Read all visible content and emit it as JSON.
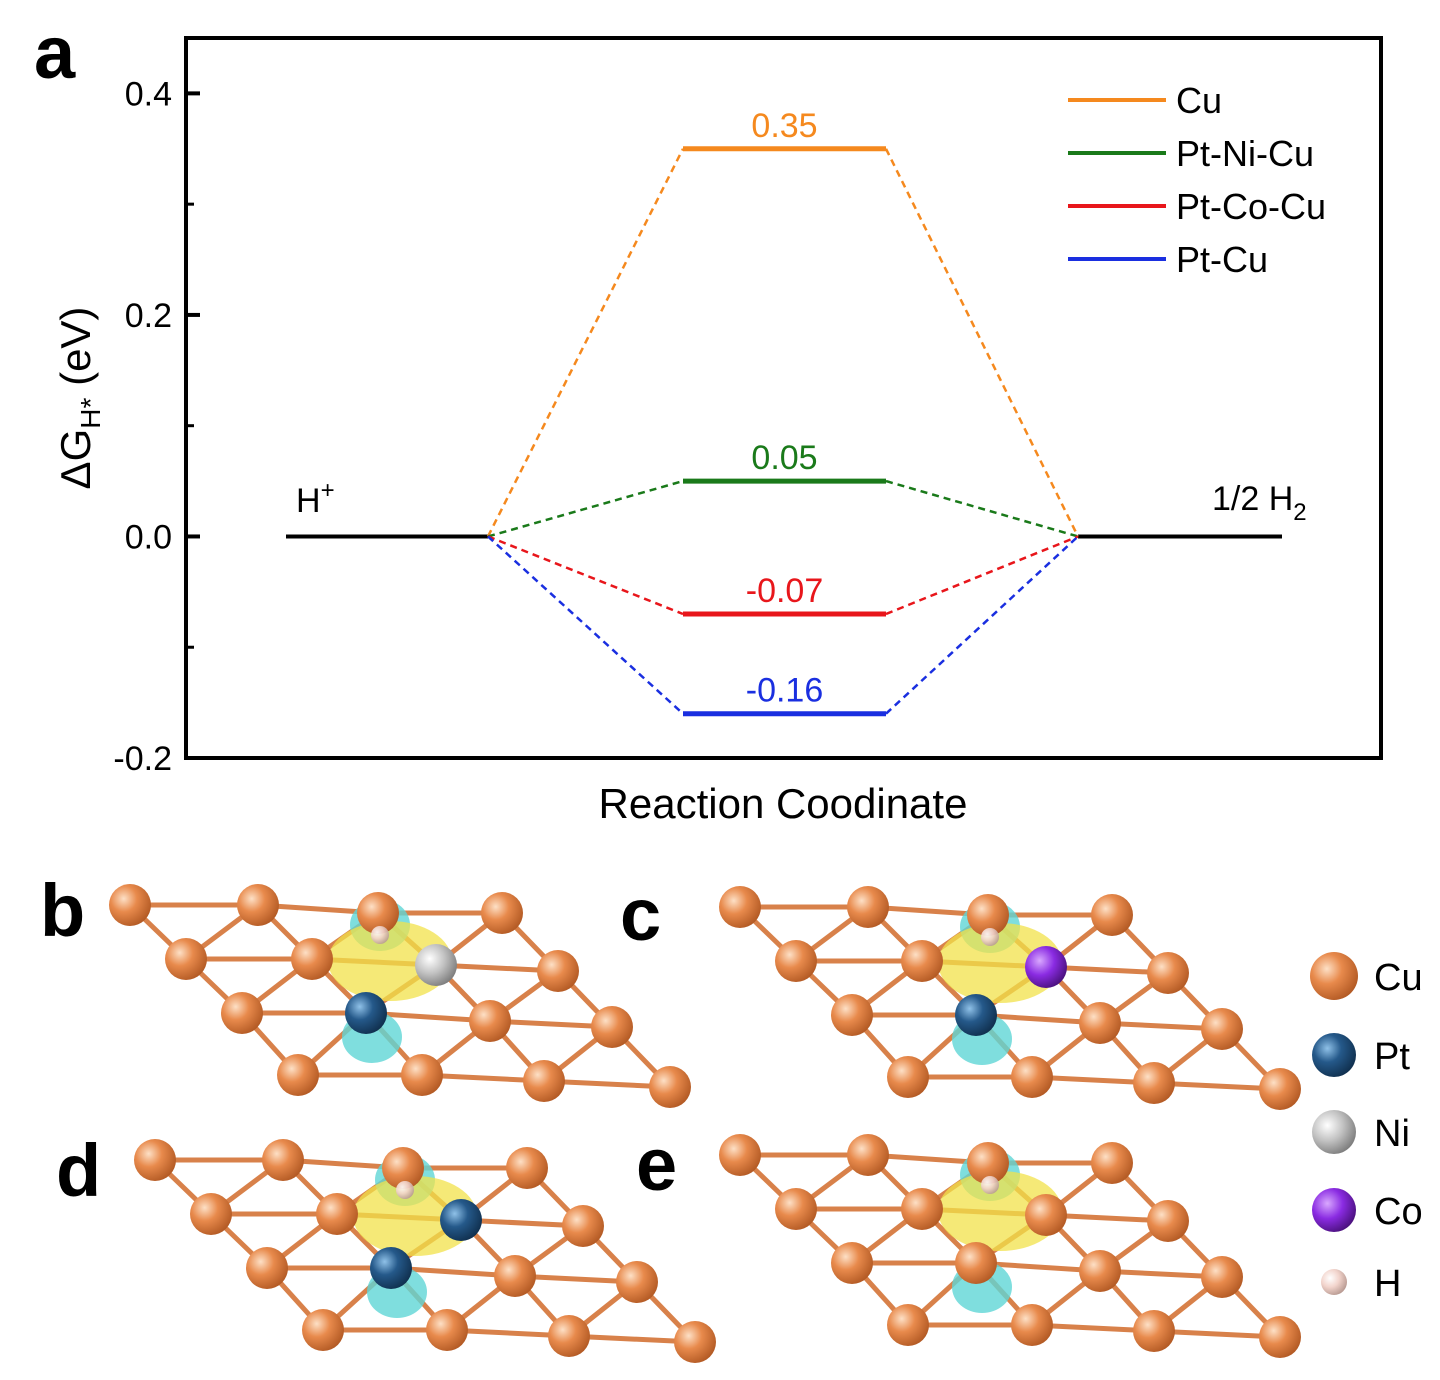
{
  "panel_letters": [
    "a",
    "b",
    "c",
    "d",
    "e"
  ],
  "chart_data": {
    "type": "line",
    "title": "",
    "xlabel": "Reaction Coodinate",
    "ylabel": {
      "main": "ΔG",
      "sub": "H*",
      "unit": "(eV)"
    },
    "ylim": [
      -0.2,
      0.45
    ],
    "yticks": [
      "-0.2",
      "0.0",
      "0.2",
      "0.4"
    ],
    "grid": false,
    "legend_position": "top-right",
    "stages": [
      {
        "label": "H",
        "sup": "+",
        "value": 0.0
      },
      {
        "label": "",
        "value": null
      },
      {
        "label": "1/2 H",
        "sub": "2",
        "value": 0.0
      }
    ],
    "series": [
      {
        "name": "Cu",
        "value": 0.35,
        "label": "0.35",
        "color": "#f5891e"
      },
      {
        "name": "Pt-Ni-Cu",
        "value": 0.05,
        "label": "0.05",
        "color": "#1a7a1a"
      },
      {
        "name": "Pt-Co-Cu",
        "value": -0.07,
        "label": "-0.07",
        "color": "#e8161b"
      },
      {
        "name": "Pt-Cu",
        "value": -0.16,
        "label": "-0.16",
        "color": "#1a2fe0"
      }
    ]
  },
  "atom_legend": [
    {
      "name": "Cu",
      "color": "#e07a3e"
    },
    {
      "name": "Pt",
      "color": "#1f4f7a"
    },
    {
      "name": "Ni",
      "color": "#b8b8b8"
    },
    {
      "name": "Co",
      "color": "#8a2be2"
    },
    {
      "name": "H",
      "color": "#f2d4cc"
    }
  ]
}
